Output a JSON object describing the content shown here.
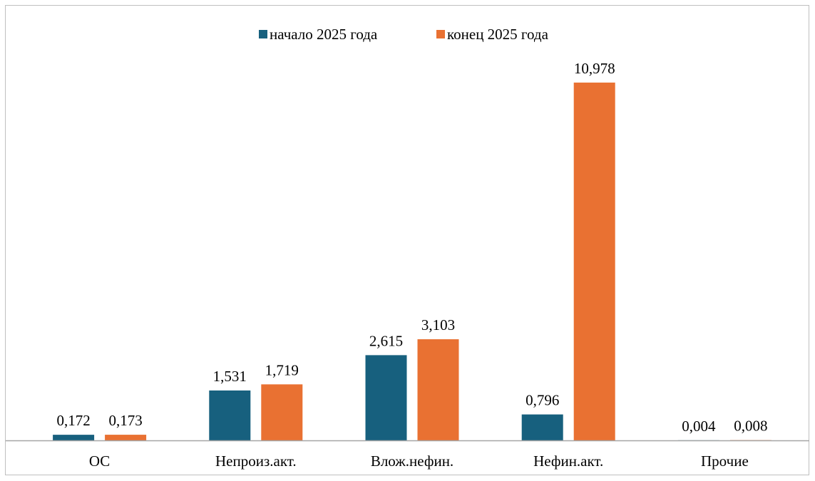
{
  "chart_data": {
    "type": "bar",
    "title": "",
    "xlabel": "",
    "ylabel": "",
    "categories": [
      "ОС",
      "Непроиз.акт.",
      "Влож.нефин.",
      "Нефин.акт.",
      "Прочие"
    ],
    "series": [
      {
        "name": "начало 2025 года",
        "color": "#17607e",
        "values": [
          0.172,
          1.531,
          2.615,
          0.796,
          0.004
        ],
        "labels": [
          "0,172",
          "1,531",
          "2,615",
          "0,796",
          "0,004"
        ]
      },
      {
        "name": "конец 2025 года",
        "color": "#e97132",
        "values": [
          0.173,
          1.719,
          3.103,
          10.978,
          0.008
        ],
        "labels": [
          "0,173",
          "1,719",
          "3,103",
          "10,978",
          "0,008"
        ]
      }
    ],
    "ylim": [
      0,
      11.5
    ],
    "grid": false,
    "legend_position": "top-center"
  }
}
